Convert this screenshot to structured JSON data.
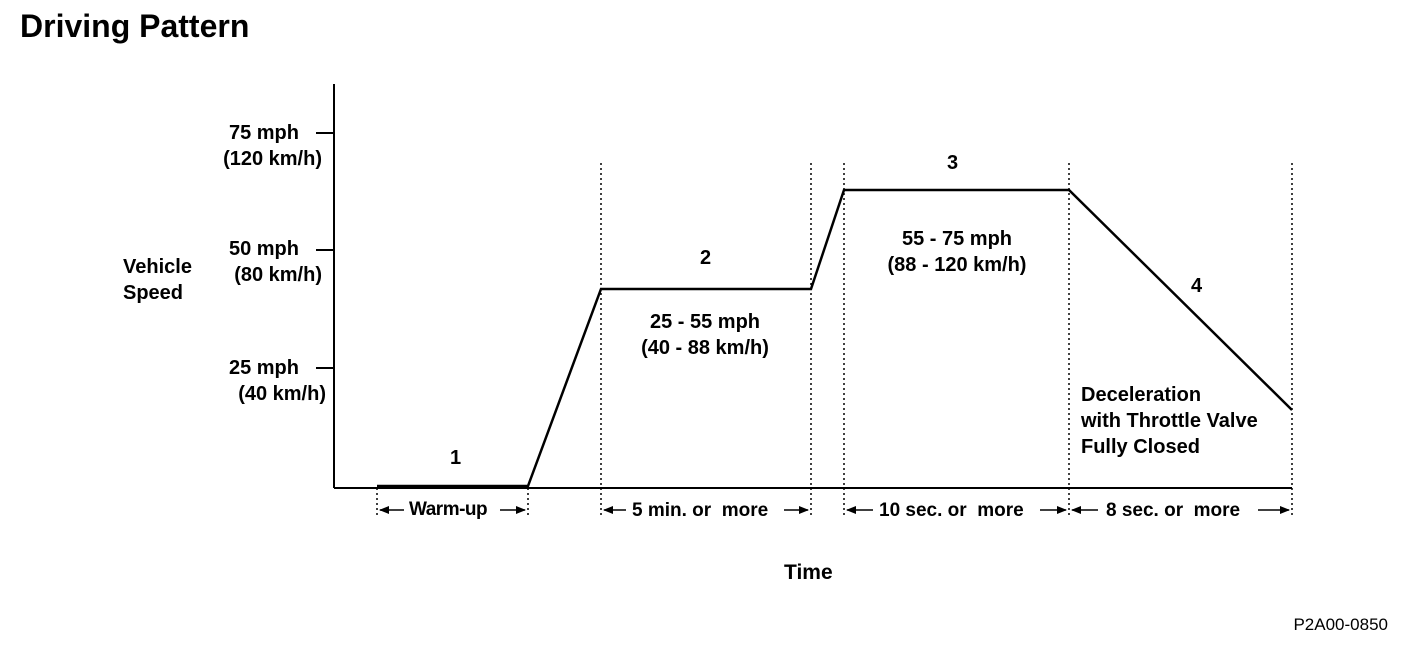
{
  "title": "Driving Pattern",
  "axes": {
    "ylabel_line1": "Vehicle",
    "ylabel_line2": "Speed",
    "xlabel": "Time",
    "ticks": [
      {
        "mph": "75 mph",
        "kmh": "(120 km/h)"
      },
      {
        "mph": "50 mph",
        "kmh": "(80 km/h)"
      },
      {
        "mph": "25 mph",
        "kmh": "(40 km/h)"
      }
    ]
  },
  "phases": [
    {
      "number": "1",
      "duration": "Warm-up"
    },
    {
      "number": "2",
      "speed_mph": "25 - 55 mph",
      "speed_kmh": "(40 - 88 km/h)",
      "duration": "5 min. or  more"
    },
    {
      "number": "3",
      "speed_mph": "55 - 75 mph",
      "speed_kmh": "(88 - 120 km/h)",
      "duration": "10 sec. or  more"
    },
    {
      "number": "4",
      "note_line1": "Deceleration",
      "note_line2": "with Throttle Valve",
      "note_line3": "Fully Closed",
      "duration": "8 sec. or  more"
    }
  ],
  "figure_id": "P2A00-0850"
}
